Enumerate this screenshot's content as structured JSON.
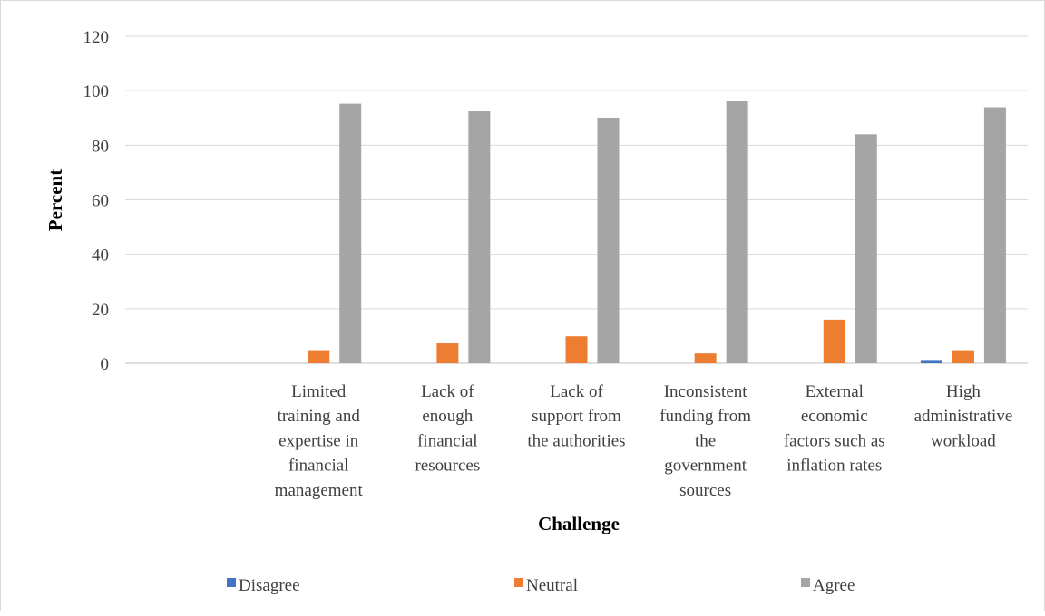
{
  "chart_data": {
    "type": "bar",
    "title": "",
    "xlabel": "Challenge",
    "ylabel": "Percent",
    "ylim": [
      0,
      120
    ],
    "ytick_step": 20,
    "grid": true,
    "legend_position": "bottom",
    "categories": [
      [
        "Limited",
        "training and",
        "expertise in",
        "financial",
        "management"
      ],
      [
        "Lack of",
        "enough",
        "financial",
        "resources"
      ],
      [
        "Lack of",
        "support from",
        "the authorities"
      ],
      [
        "Inconsistent",
        "funding from",
        "the",
        "government",
        "sources"
      ],
      [
        "External",
        "economic",
        "factors such as",
        "inflation rates"
      ],
      [
        "High",
        "administrative",
        "workload"
      ]
    ],
    "series": [
      {
        "name": "Disagree",
        "color": "#4472C4",
        "values": [
          0,
          0,
          0,
          0,
          0,
          1.2
        ]
      },
      {
        "name": "Neutral",
        "color": "#ED7D31",
        "values": [
          4.8,
          7.3,
          9.9,
          3.6,
          16.0,
          4.8
        ]
      },
      {
        "name": "Agree",
        "color": "#A5A5A5",
        "values": [
          95.2,
          92.7,
          90.1,
          96.4,
          84.0,
          93.9
        ]
      }
    ]
  }
}
